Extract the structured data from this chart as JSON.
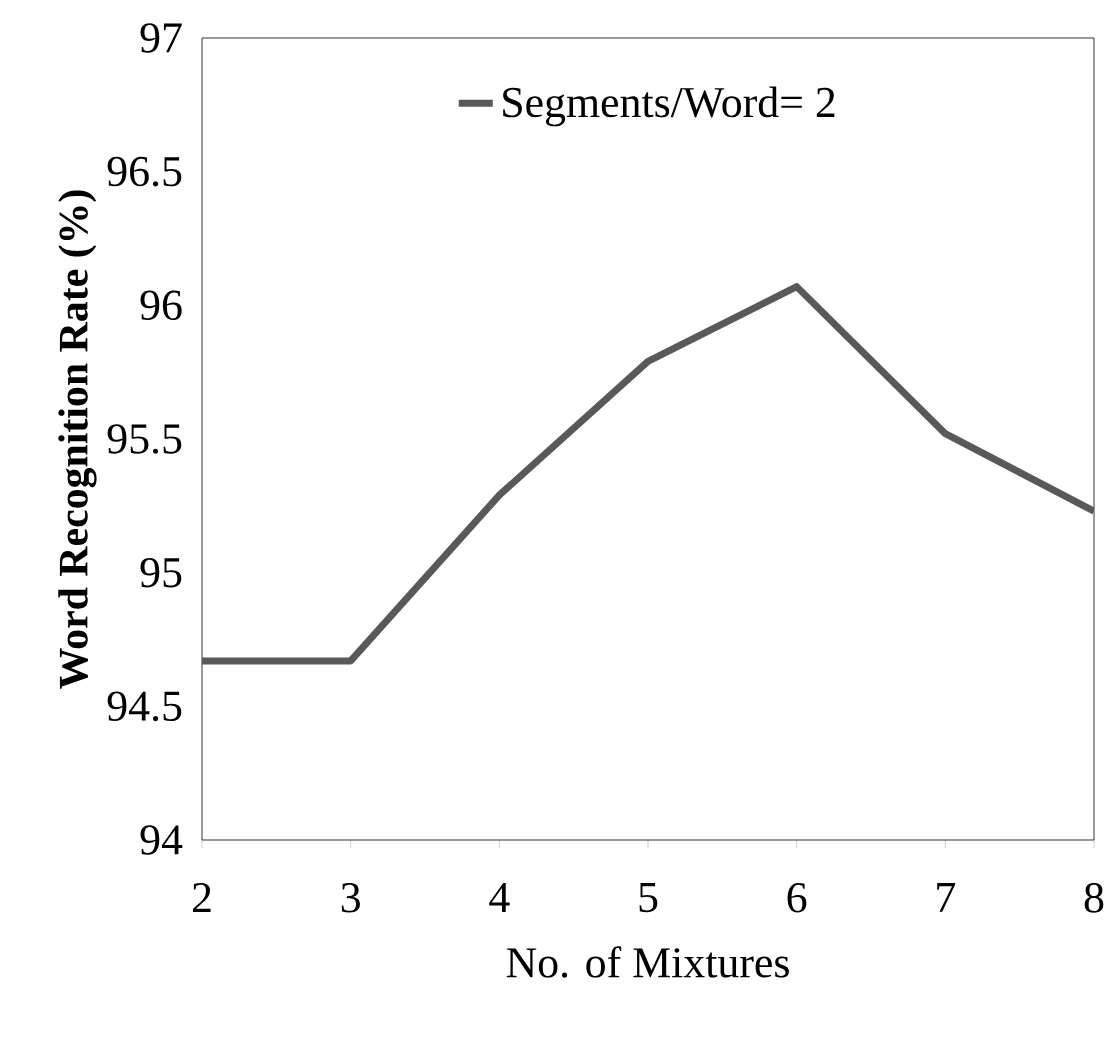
{
  "chart_data": {
    "type": "line",
    "xlabel": "No. of Mixtures",
    "ylabel": "Word Recognition Rate (%)",
    "x": [
      2,
      3,
      4,
      5,
      6,
      7,
      8
    ],
    "series": [
      {
        "name": "Segments/Word= 2",
        "color": "#595959",
        "values": [
          94.67,
          94.67,
          95.29,
          95.79,
          96.07,
          95.52,
          95.23
        ]
      }
    ],
    "xlim": [
      2,
      8
    ],
    "ylim": [
      94,
      97
    ],
    "xticks": [
      2,
      3,
      4,
      5,
      6,
      7,
      8
    ],
    "yticks": [
      94,
      94.5,
      95,
      95.5,
      96,
      96.5,
      97
    ],
    "grid": false,
    "legend": "top",
    "marker": "none",
    "line_style": "solid"
  }
}
